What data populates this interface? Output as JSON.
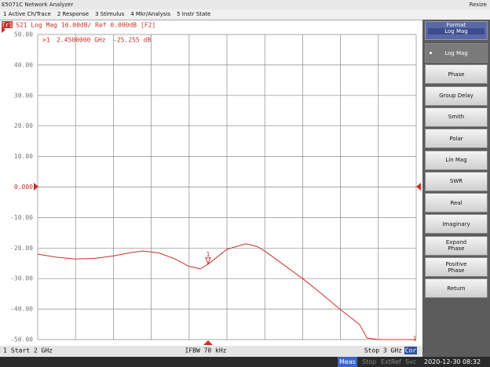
{
  "window": {
    "title": "E5071C Network Analyzer",
    "resize": "Resize"
  },
  "menu": [
    "1 Active Ch/Trace",
    "2 Response",
    "3 Stimulus",
    "4 Mkr/Analysis",
    "5 Instr State"
  ],
  "chart_data": {
    "type": "line",
    "trace_tag": "Tr1",
    "title": "S21 Log Mag 10.00dB/ Ref 0.000dB [F2]",
    "xlim": [
      2,
      3
    ],
    "ylim": [
      -50,
      50
    ],
    "yticks": [
      {
        "value": 50,
        "label": "50.00"
      },
      {
        "value": 40,
        "label": "40.00"
      },
      {
        "value": 30,
        "label": "30.00"
      },
      {
        "value": 20,
        "label": "20.00"
      },
      {
        "value": 10,
        "label": "10.00"
      },
      {
        "value": 0,
        "label": "0.000"
      },
      {
        "value": -10,
        "label": "-10.00"
      },
      {
        "value": -20,
        "label": "-20.00"
      },
      {
        "value": -30,
        "label": "-30.00"
      },
      {
        "value": -40,
        "label": "-40.00"
      },
      {
        "value": -50,
        "label": "-50.00"
      }
    ],
    "grid": true,
    "x": [
      2.0,
      2.05,
      2.1,
      2.15,
      2.2,
      2.25,
      2.28,
      2.32,
      2.36,
      2.4,
      2.43,
      2.45,
      2.5,
      2.55,
      2.58,
      2.6,
      2.65,
      2.7,
      2.75,
      2.8,
      2.85,
      2.87,
      2.9,
      2.95,
      3.0
    ],
    "series": [
      {
        "name": "S21",
        "color": "#c8302c",
        "values": [
          -22.0,
          -23.0,
          -23.6,
          -23.4,
          -22.6,
          -21.4,
          -21.0,
          -21.6,
          -23.4,
          -26.0,
          -26.8,
          -25.3,
          -20.4,
          -18.6,
          -19.5,
          -21.0,
          -25.5,
          -30.0,
          -35.0,
          -40.2,
          -45.0,
          -49.5,
          -50,
          -50,
          -50
        ]
      }
    ],
    "marker": {
      "readout": ">1",
      "x_label": "2.4500000 GHz",
      "value_label": "-25.255 dB",
      "x": 2.45,
      "value": -25.255,
      "number": "1"
    },
    "end_marker": "1",
    "channel": "1",
    "start": "Start 2 GHz",
    "ifbw": "IFBW 70 kHz",
    "stop": "Stop 3 GHz",
    "cor": "Cor"
  },
  "softkeys": {
    "header": "Format",
    "current": "Log Mag",
    "buttons": [
      [
        "Log Mag"
      ],
      [
        "Phase"
      ],
      [
        "Group Delay"
      ],
      [
        "Smith"
      ],
      [
        "Polar"
      ],
      [
        "Lin Mag"
      ],
      [
        "SWR"
      ],
      [
        "Real"
      ],
      [
        "Imaginary"
      ],
      [
        "Expand",
        "Phase"
      ],
      [
        "Positive",
        "Phase"
      ],
      [
        "Return"
      ]
    ]
  },
  "status": {
    "meas": "Meas",
    "stop": "Stop",
    "extref": "ExtRef",
    "svc": "Svc",
    "datetime": "2020-12-30 08:32"
  }
}
